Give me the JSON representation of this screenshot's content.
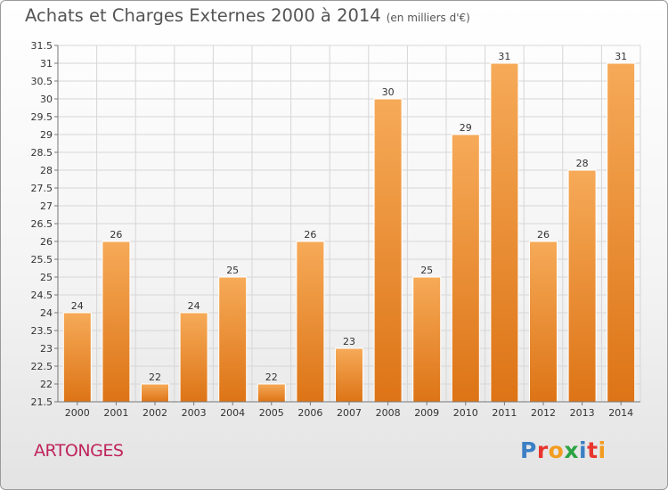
{
  "title": "Achats et Charges Externes 2000 à 2014",
  "subtitle": "(en milliers d'€)",
  "commune": "ARTONGES",
  "logo": {
    "text": "Proxiti",
    "letters": [
      "P",
      "r",
      "o",
      "x",
      "i",
      "t",
      "i"
    ],
    "colors": [
      "#3b7fc4",
      "#e8352d",
      "#f39c1f",
      "#2ca342",
      "#3b7fc4",
      "#e8352d",
      "#f39c1f"
    ]
  },
  "colors": {
    "bar_top": "#f6aa58",
    "bar_bottom": "#dd7416",
    "bar_edge": "#ffffff",
    "grid": "#d6d6d6",
    "axis": "#777777",
    "commune_text": "#c0245c"
  },
  "chart_data": {
    "type": "bar",
    "title": "Achats et Charges Externes 2000 à 2014",
    "subtitle": "(en milliers d'€)",
    "categories": [
      "2000",
      "2001",
      "2002",
      "2003",
      "2004",
      "2005",
      "2006",
      "2007",
      "2008",
      "2009",
      "2010",
      "2011",
      "2012",
      "2013",
      "2014"
    ],
    "values": [
      24,
      26,
      22,
      24,
      25,
      22,
      26,
      23,
      30,
      25,
      29,
      31,
      26,
      28,
      31
    ],
    "ylim": [
      21.5,
      31.5
    ],
    "yticks": [
      "21.5",
      "22",
      "22.5",
      "23",
      "23.5",
      "24",
      "24.5",
      "25",
      "25.5",
      "26",
      "26.5",
      "27",
      "27.5",
      "28",
      "28.5",
      "29",
      "29.5",
      "30",
      "30.5",
      "31",
      "31.5"
    ],
    "grid": true,
    "data_labels": true
  }
}
